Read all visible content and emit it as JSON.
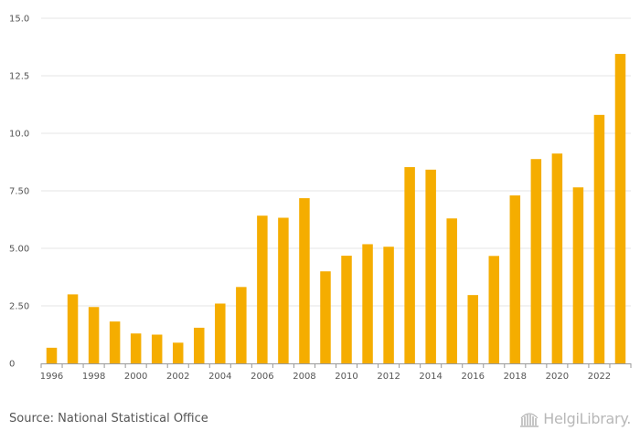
{
  "chart_data": {
    "type": "bar",
    "title": "",
    "xlabel": "",
    "ylabel": "",
    "ylim": [
      0,
      15
    ],
    "yticks": [
      "0",
      "2.50",
      "5.00",
      "7.50",
      "10.0",
      "12.5",
      "15.0"
    ],
    "ytick_values": [
      0,
      2.5,
      5,
      7.5,
      10,
      12.5,
      15
    ],
    "categories": [
      "1996",
      "1997",
      "1998",
      "1999",
      "2000",
      "2001",
      "2002",
      "2003",
      "2004",
      "2005",
      "2006",
      "2007",
      "2008",
      "2009",
      "2010",
      "2011",
      "2012",
      "2013",
      "2014",
      "2015",
      "2016",
      "2017",
      "2018",
      "2019",
      "2020",
      "2021",
      "2022",
      "2023"
    ],
    "xtick_labels": [
      "1996",
      "1998",
      "2000",
      "2002",
      "2004",
      "2006",
      "2008",
      "2010",
      "2012",
      "2014",
      "2016",
      "2018",
      "2020",
      "2022"
    ],
    "values": [
      0.68,
      3.0,
      2.45,
      1.82,
      1.3,
      1.25,
      0.9,
      1.55,
      2.6,
      3.32,
      6.42,
      6.33,
      7.18,
      4.0,
      4.68,
      5.18,
      5.07,
      8.53,
      8.42,
      6.3,
      2.97,
      4.67,
      7.3,
      8.88,
      9.12,
      7.65,
      10.8,
      13.45
    ],
    "bar_color": "#f5ad00",
    "grid": true
  },
  "footer": {
    "source": "Source: National Statistical Office",
    "logo_text": "HelgiLibrary."
  }
}
